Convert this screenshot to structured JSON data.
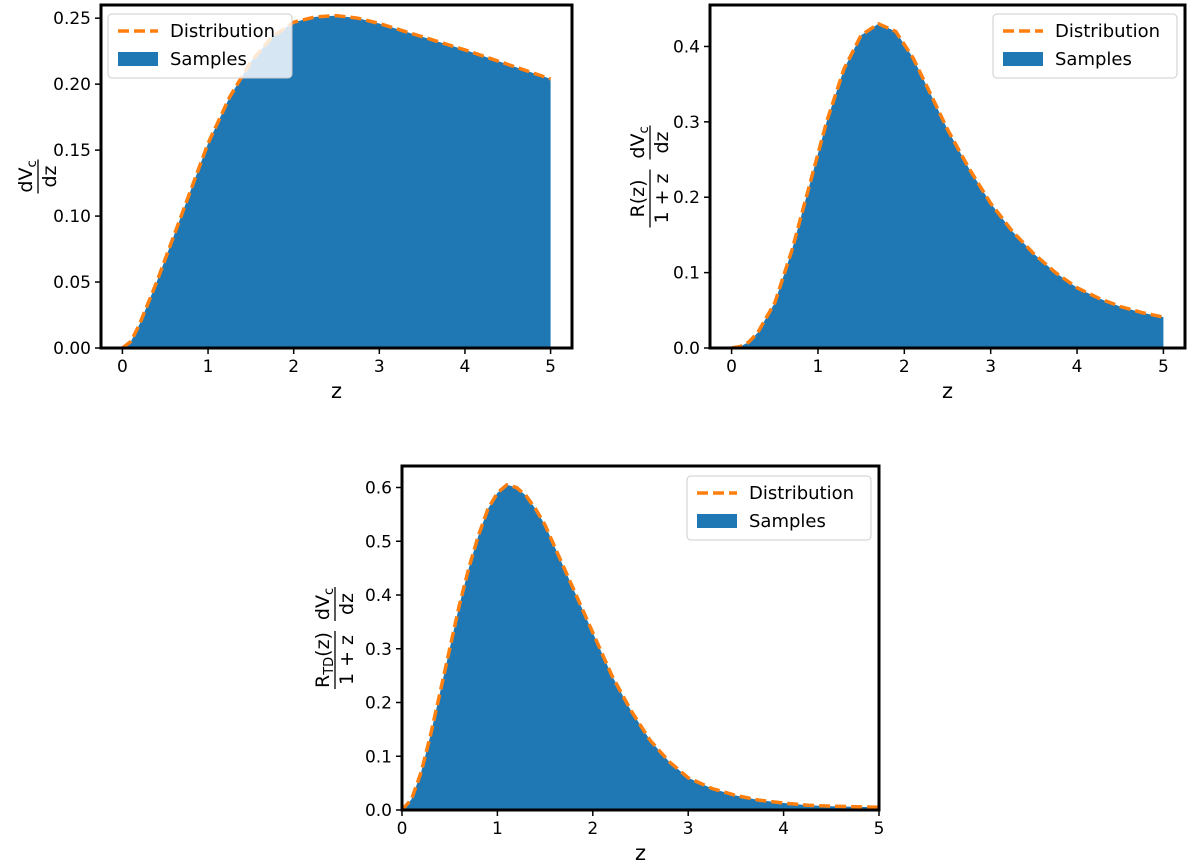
{
  "colors": {
    "samples": "#1f77b4",
    "distribution": "#ff7f0e",
    "frame": "#000000",
    "background": "#ffffff"
  },
  "chart_data": [
    {
      "type": "area",
      "legend": {
        "placement": "upper-left",
        "entries": [
          "Distribution",
          "Samples"
        ]
      },
      "xlabel": "z",
      "ylabel": {
        "numerator": "dV",
        "numerator_sub": "c",
        "denominator": "dz",
        "prefix_num": "",
        "prefix_den": ""
      },
      "xlim": [
        -0.25,
        5.25
      ],
      "ylim": [
        0,
        0.26
      ],
      "xticks": [
        0,
        1,
        2,
        3,
        4,
        5
      ],
      "yticks": [
        0.0,
        0.05,
        0.1,
        0.15,
        0.2,
        0.25
      ],
      "ytick_labels": [
        "0.00",
        "0.05",
        "0.10",
        "0.15",
        "0.20",
        "0.25"
      ],
      "grid": false,
      "series": [
        {
          "name": "Samples",
          "kind": "histogram",
          "x": [
            0,
            0.1,
            0.2,
            0.4,
            0.6,
            0.8,
            1.0,
            1.25,
            1.5,
            1.75,
            2.0,
            2.25,
            2.5,
            2.75,
            3.0,
            3.5,
            4.0,
            4.5,
            5.0
          ],
          "y": [
            0.0,
            0.005,
            0.018,
            0.05,
            0.085,
            0.12,
            0.155,
            0.19,
            0.217,
            0.236,
            0.247,
            0.251,
            0.252,
            0.25,
            0.246,
            0.236,
            0.226,
            0.215,
            0.204
          ]
        },
        {
          "name": "Distribution",
          "kind": "line",
          "x": [
            0,
            0.1,
            0.2,
            0.4,
            0.6,
            0.8,
            1.0,
            1.25,
            1.5,
            1.75,
            2.0,
            2.25,
            2.5,
            2.75,
            3.0,
            3.5,
            4.0,
            4.5,
            5.0
          ],
          "y": [
            0.0,
            0.005,
            0.018,
            0.05,
            0.085,
            0.12,
            0.155,
            0.19,
            0.217,
            0.236,
            0.247,
            0.251,
            0.252,
            0.25,
            0.246,
            0.236,
            0.226,
            0.215,
            0.204
          ]
        }
      ]
    },
    {
      "type": "area",
      "legend": {
        "placement": "upper-right",
        "entries": [
          "Distribution",
          "Samples"
        ]
      },
      "xlabel": "z",
      "ylabel": {
        "numerator": "dV",
        "numerator_sub": "c",
        "denominator": "dz",
        "prefix_num": "R(z)",
        "prefix_den": "1 + z"
      },
      "xlim": [
        -0.25,
        5.25
      ],
      "ylim": [
        0,
        0.455
      ],
      "xticks": [
        0,
        1,
        2,
        3,
        4,
        5
      ],
      "yticks": [
        0.0,
        0.1,
        0.2,
        0.3,
        0.4
      ],
      "ytick_labels": [
        "0.0",
        "0.1",
        "0.2",
        "0.3",
        "0.4"
      ],
      "grid": false,
      "series": [
        {
          "name": "Samples",
          "kind": "histogram",
          "x": [
            0,
            0.1,
            0.2,
            0.3,
            0.5,
            0.7,
            0.9,
            1.1,
            1.3,
            1.5,
            1.7,
            1.9,
            2.1,
            2.3,
            2.5,
            2.75,
            3.0,
            3.25,
            3.5,
            3.75,
            4.0,
            4.25,
            4.5,
            4.75,
            5.0
          ],
          "y": [
            0.0,
            0.002,
            0.008,
            0.02,
            0.06,
            0.13,
            0.215,
            0.3,
            0.37,
            0.415,
            0.43,
            0.42,
            0.385,
            0.338,
            0.29,
            0.238,
            0.192,
            0.155,
            0.125,
            0.1,
            0.08,
            0.066,
            0.055,
            0.047,
            0.041
          ]
        },
        {
          "name": "Distribution",
          "kind": "line",
          "x": [
            0,
            0.1,
            0.2,
            0.3,
            0.5,
            0.7,
            0.9,
            1.1,
            1.3,
            1.5,
            1.7,
            1.9,
            2.1,
            2.3,
            2.5,
            2.75,
            3.0,
            3.25,
            3.5,
            3.75,
            4.0,
            4.25,
            4.5,
            4.75,
            5.0
          ],
          "y": [
            0.0,
            0.002,
            0.008,
            0.02,
            0.06,
            0.13,
            0.215,
            0.3,
            0.37,
            0.415,
            0.43,
            0.42,
            0.385,
            0.338,
            0.29,
            0.238,
            0.192,
            0.155,
            0.125,
            0.1,
            0.08,
            0.066,
            0.055,
            0.047,
            0.041
          ]
        }
      ]
    },
    {
      "type": "area",
      "legend": {
        "placement": "upper-right",
        "entries": [
          "Distribution",
          "Samples"
        ]
      },
      "xlabel": "z",
      "ylabel": {
        "numerator": "dV",
        "numerator_sub": "c",
        "denominator": "dz",
        "prefix_num": "R",
        "prefix_num_sub": "TD",
        "prefix_num_tail": "(z)",
        "prefix_den": "1 + z"
      },
      "xlim": [
        0,
        5
      ],
      "ylim": [
        0,
        0.64
      ],
      "xticks": [
        0,
        1,
        2,
        3,
        4,
        5
      ],
      "yticks": [
        0.0,
        0.1,
        0.2,
        0.3,
        0.4,
        0.5,
        0.6
      ],
      "ytick_labels": [
        "0.0",
        "0.1",
        "0.2",
        "0.3",
        "0.4",
        "0.5",
        "0.6"
      ],
      "grid": false,
      "series": [
        {
          "name": "Samples",
          "kind": "histogram",
          "x": [
            0,
            0.1,
            0.2,
            0.3,
            0.4,
            0.5,
            0.6,
            0.7,
            0.8,
            0.9,
            1.0,
            1.1,
            1.2,
            1.3,
            1.4,
            1.5,
            1.6,
            1.8,
            2.0,
            2.2,
            2.4,
            2.6,
            2.8,
            3.0,
            3.25,
            3.5,
            3.75,
            4.0,
            4.25,
            4.5,
            5.0
          ],
          "y": [
            0.0,
            0.02,
            0.07,
            0.14,
            0.22,
            0.3,
            0.38,
            0.45,
            0.51,
            0.56,
            0.59,
            0.605,
            0.6,
            0.585,
            0.56,
            0.53,
            0.49,
            0.41,
            0.33,
            0.25,
            0.185,
            0.13,
            0.09,
            0.06,
            0.04,
            0.027,
            0.018,
            0.013,
            0.009,
            0.007,
            0.005
          ]
        },
        {
          "name": "Distribution",
          "kind": "line",
          "x": [
            0,
            0.1,
            0.2,
            0.3,
            0.4,
            0.5,
            0.6,
            0.7,
            0.8,
            0.9,
            1.0,
            1.1,
            1.2,
            1.3,
            1.4,
            1.5,
            1.6,
            1.8,
            2.0,
            2.2,
            2.4,
            2.6,
            2.8,
            3.0,
            3.25,
            3.5,
            3.75,
            4.0,
            4.25,
            4.5,
            5.0
          ],
          "y": [
            0.0,
            0.02,
            0.07,
            0.14,
            0.22,
            0.3,
            0.38,
            0.45,
            0.51,
            0.56,
            0.59,
            0.605,
            0.6,
            0.585,
            0.56,
            0.53,
            0.49,
            0.41,
            0.33,
            0.25,
            0.185,
            0.13,
            0.09,
            0.06,
            0.04,
            0.027,
            0.018,
            0.013,
            0.009,
            0.007,
            0.005
          ]
        }
      ]
    }
  ]
}
